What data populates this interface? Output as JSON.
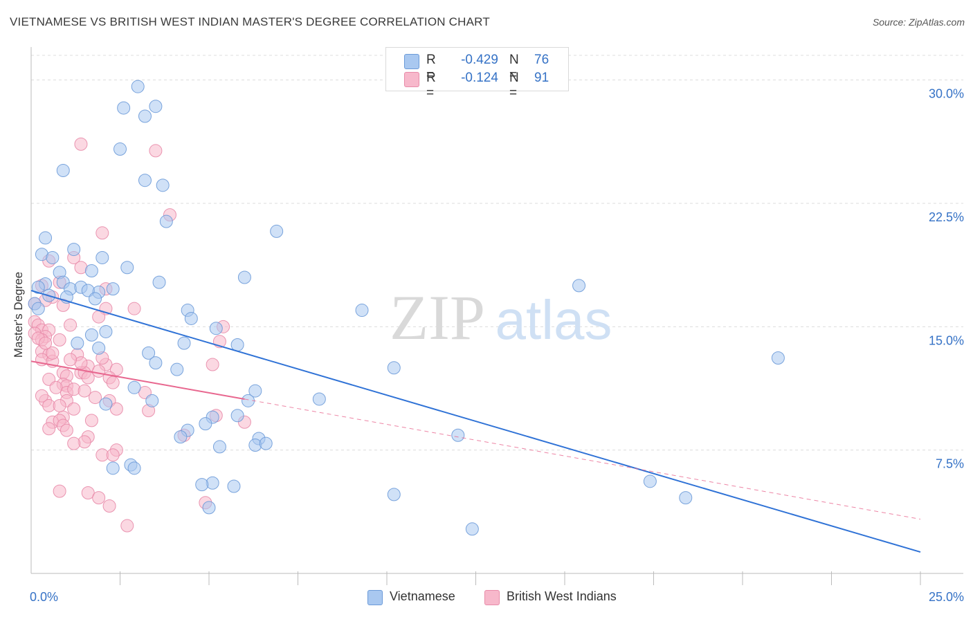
{
  "title": "VIETNAMESE VS BRITISH WEST INDIAN MASTER'S DEGREE CORRELATION CHART",
  "source": "Source: ZipAtlas.com",
  "watermark": {
    "zip": "ZIP",
    "atlas": "atlas"
  },
  "legend": {
    "r_label": "R =",
    "n_label": "N =",
    "rows": [
      {
        "r": "-0.429",
        "n": "76"
      },
      {
        "r": "-0.124",
        "n": "91"
      }
    ]
  },
  "colors": {
    "blue_fill": "#a9c8f0",
    "blue_stroke": "#6b9ad8",
    "blue_line": "#2f72d6",
    "pink_fill": "#f7b8cb",
    "pink_stroke": "#e88aa8",
    "pink_line": "#e8678f",
    "tick_text": "#3572c6",
    "grid": "#dcdcdc"
  },
  "chart_data": {
    "type": "scatter",
    "title": "VIETNAMESE VS BRITISH WEST INDIAN MASTER'S DEGREE CORRELATION CHART",
    "xlabel": "",
    "ylabel": "Master's Degree",
    "xlim": [
      0,
      25
    ],
    "ylim": [
      0,
      31.5
    ],
    "y_ticks": [
      7.5,
      15.0,
      22.5,
      30.0
    ],
    "y_tick_labels": [
      "7.5%",
      "15.0%",
      "22.5%",
      "30.0%"
    ],
    "x_tick_labels": [
      "0.0%",
      "25.0%"
    ],
    "series": [
      {
        "name": "Vietnamese",
        "color": "blue",
        "trend": {
          "x": [
            0,
            25
          ],
          "y": [
            17.2,
            1.3
          ],
          "dashed_to": null
        },
        "points": [
          [
            3.0,
            29.6
          ],
          [
            2.6,
            28.3
          ],
          [
            3.5,
            28.4
          ],
          [
            3.2,
            27.8
          ],
          [
            2.5,
            25.8
          ],
          [
            0.9,
            24.5
          ],
          [
            3.2,
            23.9
          ],
          [
            3.7,
            23.6
          ],
          [
            3.8,
            21.4
          ],
          [
            6.9,
            20.8
          ],
          [
            0.4,
            20.4
          ],
          [
            0.3,
            19.4
          ],
          [
            1.2,
            19.7
          ],
          [
            0.6,
            19.2
          ],
          [
            2.0,
            19.2
          ],
          [
            1.7,
            18.4
          ],
          [
            2.7,
            18.6
          ],
          [
            0.8,
            18.3
          ],
          [
            0.4,
            17.6
          ],
          [
            0.9,
            17.7
          ],
          [
            3.6,
            17.7
          ],
          [
            6.0,
            18.0
          ],
          [
            15.4,
            17.5
          ],
          [
            0.2,
            17.4
          ],
          [
            1.1,
            17.3
          ],
          [
            1.4,
            17.4
          ],
          [
            1.9,
            17.1
          ],
          [
            1.6,
            17.2
          ],
          [
            2.3,
            17.3
          ],
          [
            0.5,
            16.9
          ],
          [
            1.0,
            16.8
          ],
          [
            1.8,
            16.7
          ],
          [
            0.1,
            16.4
          ],
          [
            0.2,
            16.1
          ],
          [
            4.4,
            16.0
          ],
          [
            9.3,
            16.0
          ],
          [
            4.5,
            15.5
          ],
          [
            5.2,
            14.9
          ],
          [
            1.7,
            14.5
          ],
          [
            2.1,
            14.7
          ],
          [
            1.3,
            14.0
          ],
          [
            4.3,
            14.0
          ],
          [
            5.8,
            13.9
          ],
          [
            1.9,
            13.7
          ],
          [
            3.3,
            13.4
          ],
          [
            3.5,
            12.8
          ],
          [
            4.1,
            12.4
          ],
          [
            10.2,
            12.5
          ],
          [
            21.0,
            13.1
          ],
          [
            2.9,
            11.3
          ],
          [
            6.3,
            11.1
          ],
          [
            3.4,
            10.5
          ],
          [
            2.1,
            10.3
          ],
          [
            6.1,
            10.5
          ],
          [
            8.1,
            10.6
          ],
          [
            5.1,
            9.5
          ],
          [
            5.8,
            9.6
          ],
          [
            4.9,
            9.1
          ],
          [
            4.4,
            8.7
          ],
          [
            4.2,
            8.3
          ],
          [
            6.4,
            8.2
          ],
          [
            12.0,
            8.4
          ],
          [
            6.3,
            7.8
          ],
          [
            6.6,
            7.9
          ],
          [
            5.3,
            7.7
          ],
          [
            2.8,
            6.6
          ],
          [
            2.3,
            6.4
          ],
          [
            2.9,
            6.4
          ],
          [
            5.1,
            5.5
          ],
          [
            4.8,
            5.4
          ],
          [
            5.7,
            5.3
          ],
          [
            10.2,
            4.8
          ],
          [
            17.4,
            5.6
          ],
          [
            18.4,
            4.6
          ],
          [
            5.0,
            4.0
          ],
          [
            12.4,
            2.7
          ]
        ]
      },
      {
        "name": "British West Indians",
        "color": "pink",
        "trend": {
          "x": [
            0,
            6.0
          ],
          "y": [
            12.9,
            10.6
          ],
          "dashed_to": [
            25,
            3.3
          ]
        },
        "points": [
          [
            1.4,
            26.1
          ],
          [
            3.5,
            25.7
          ],
          [
            3.9,
            21.8
          ],
          [
            2.0,
            20.7
          ],
          [
            1.2,
            19.2
          ],
          [
            0.5,
            19.0
          ],
          [
            1.4,
            18.6
          ],
          [
            0.8,
            17.7
          ],
          [
            0.3,
            17.5
          ],
          [
            2.1,
            17.3
          ],
          [
            0.6,
            16.8
          ],
          [
            0.4,
            16.6
          ],
          [
            0.1,
            16.4
          ],
          [
            0.9,
            16.3
          ],
          [
            2.1,
            16.1
          ],
          [
            2.9,
            16.1
          ],
          [
            1.9,
            15.6
          ],
          [
            0.1,
            15.3
          ],
          [
            0.2,
            15.1
          ],
          [
            1.1,
            15.1
          ],
          [
            5.4,
            15.0
          ],
          [
            0.3,
            14.8
          ],
          [
            0.5,
            14.8
          ],
          [
            0.1,
            14.6
          ],
          [
            0.4,
            14.4
          ],
          [
            0.3,
            14.2
          ],
          [
            0.8,
            14.2
          ],
          [
            5.3,
            14.1
          ],
          [
            0.3,
            13.5
          ],
          [
            0.5,
            13.3
          ],
          [
            1.3,
            13.3
          ],
          [
            0.3,
            13.0
          ],
          [
            0.6,
            12.9
          ],
          [
            2.1,
            12.7
          ],
          [
            1.6,
            12.6
          ],
          [
            5.1,
            12.7
          ],
          [
            2.4,
            12.4
          ],
          [
            1.4,
            12.2
          ],
          [
            1.5,
            12.2
          ],
          [
            0.9,
            12.2
          ],
          [
            1.0,
            12.0
          ],
          [
            2.2,
            11.9
          ],
          [
            1.6,
            11.9
          ],
          [
            0.5,
            11.8
          ],
          [
            0.9,
            11.5
          ],
          [
            2.3,
            11.6
          ],
          [
            1.0,
            11.4
          ],
          [
            1.0,
            11.0
          ],
          [
            1.2,
            11.2
          ],
          [
            1.5,
            11.1
          ],
          [
            3.2,
            11.0
          ],
          [
            0.4,
            10.5
          ],
          [
            1.0,
            10.5
          ],
          [
            2.2,
            10.5
          ],
          [
            0.5,
            10.2
          ],
          [
            1.2,
            10.0
          ],
          [
            2.4,
            10.0
          ],
          [
            3.3,
            9.9
          ],
          [
            0.9,
            9.5
          ],
          [
            5.2,
            9.6
          ],
          [
            0.6,
            9.2
          ],
          [
            0.8,
            9.3
          ],
          [
            1.7,
            9.3
          ],
          [
            6.0,
            9.2
          ],
          [
            0.5,
            8.8
          ],
          [
            0.9,
            9.0
          ],
          [
            1.0,
            8.7
          ],
          [
            4.3,
            8.4
          ],
          [
            1.6,
            8.3
          ],
          [
            1.5,
            8.0
          ],
          [
            1.2,
            7.9
          ],
          [
            2.4,
            7.5
          ],
          [
            2.0,
            7.2
          ],
          [
            2.3,
            7.2
          ],
          [
            0.8,
            5.0
          ],
          [
            1.6,
            4.9
          ],
          [
            1.9,
            4.6
          ],
          [
            2.2,
            4.1
          ],
          [
            4.9,
            4.3
          ],
          [
            2.7,
            2.9
          ],
          [
            0.6,
            13.4
          ],
          [
            0.2,
            14.3
          ],
          [
            0.4,
            14.0
          ],
          [
            1.4,
            12.8
          ],
          [
            1.9,
            12.3
          ],
          [
            0.7,
            11.3
          ],
          [
            0.3,
            10.8
          ],
          [
            1.1,
            13.0
          ],
          [
            2.0,
            13.1
          ],
          [
            0.8,
            10.2
          ],
          [
            1.8,
            10.7
          ]
        ]
      }
    ]
  },
  "bottom_legend": [
    "Vietnamese",
    "British West Indians"
  ]
}
